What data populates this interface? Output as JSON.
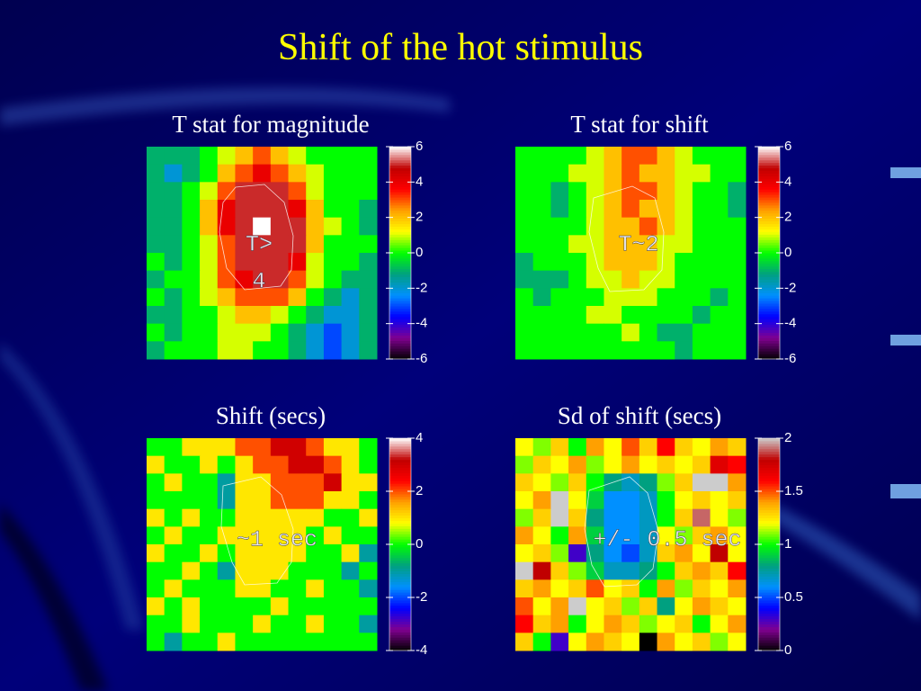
{
  "slide_title": "Shift of the hot stimulus",
  "chart_data": [
    {
      "type": "heatmap",
      "title": "T stat for magnitude",
      "zlim": [
        -6,
        6
      ],
      "zticks": [
        -6,
        -4,
        -2,
        0,
        2,
        4,
        6
      ],
      "colormap": [
        "#000000",
        "#800090",
        "#0000ff",
        "#0090ff",
        "#00a080",
        "#00ff00",
        "#ffff00",
        "#ffa000",
        "#ff0000",
        "#c00000",
        "#ffffff"
      ],
      "annotation": [
        "T>",
        "4"
      ],
      "values": [
        [
          -1,
          -1,
          -1,
          0,
          1,
          2,
          3,
          2,
          1,
          0,
          0,
          0,
          0
        ],
        [
          -1,
          -2,
          -1,
          0,
          2,
          3,
          4,
          3,
          2,
          1,
          0,
          0,
          0
        ],
        [
          -1,
          -1,
          0,
          1,
          3,
          5,
          5,
          5,
          3,
          1,
          0,
          0,
          0
        ],
        [
          -1,
          -1,
          0,
          2,
          4,
          5,
          5,
          5,
          4,
          2,
          0,
          0,
          -1
        ],
        [
          -1,
          -1,
          0,
          2,
          4,
          5,
          6,
          5,
          5,
          2,
          1,
          0,
          -1
        ],
        [
          -1,
          -1,
          0,
          1,
          3,
          5,
          5,
          5,
          5,
          2,
          0,
          0,
          0
        ],
        [
          0,
          -1,
          0,
          1,
          3,
          5,
          5,
          5,
          4,
          1,
          0,
          0,
          -1
        ],
        [
          -1,
          0,
          0,
          1,
          3,
          4,
          5,
          5,
          3,
          1,
          0,
          -1,
          -1
        ],
        [
          0,
          -1,
          0,
          1,
          2,
          3,
          3,
          3,
          2,
          0,
          -1,
          -2,
          -1
        ],
        [
          -1,
          -1,
          0,
          0,
          1,
          2,
          2,
          1,
          0,
          -1,
          -2,
          -2,
          -1
        ],
        [
          0,
          -1,
          0,
          0,
          1,
          1,
          1,
          0,
          -1,
          -2,
          -3,
          -2,
          -1
        ],
        [
          -1,
          0,
          0,
          0,
          1,
          1,
          0,
          0,
          -1,
          -2,
          -3,
          -2,
          -1
        ]
      ]
    },
    {
      "type": "heatmap",
      "title": "T stat for shift",
      "zlim": [
        -6,
        6
      ],
      "zticks": [
        -6,
        -4,
        -2,
        0,
        2,
        4,
        6
      ],
      "colormap": [
        "#000000",
        "#800090",
        "#0000ff",
        "#0090ff",
        "#00a080",
        "#00ff00",
        "#ffff00",
        "#ffa000",
        "#ff0000",
        "#c00000",
        "#ffffff"
      ],
      "annotation": [
        "T~2"
      ],
      "values": [
        [
          0,
          0,
          0,
          0,
          1,
          2,
          3,
          3,
          2,
          1,
          0,
          0,
          0
        ],
        [
          0,
          0,
          0,
          1,
          1,
          2,
          3,
          2,
          2,
          1,
          1,
          0,
          0
        ],
        [
          0,
          0,
          -1,
          0,
          1,
          2,
          3,
          3,
          2,
          1,
          0,
          0,
          -1
        ],
        [
          0,
          0,
          -1,
          0,
          1,
          2,
          3,
          2,
          2,
          1,
          0,
          0,
          -1
        ],
        [
          0,
          0,
          0,
          0,
          1,
          2,
          2,
          3,
          2,
          1,
          0,
          0,
          0
        ],
        [
          0,
          0,
          0,
          1,
          1,
          2,
          2,
          2,
          1,
          1,
          0,
          0,
          0
        ],
        [
          -1,
          0,
          0,
          0,
          1,
          2,
          2,
          2,
          1,
          0,
          0,
          0,
          0
        ],
        [
          -1,
          -1,
          -1,
          0,
          1,
          1,
          2,
          1,
          1,
          0,
          0,
          0,
          0
        ],
        [
          0,
          -1,
          0,
          0,
          0,
          1,
          1,
          1,
          0,
          0,
          0,
          -1,
          0
        ],
        [
          0,
          0,
          0,
          0,
          1,
          1,
          0,
          0,
          0,
          0,
          -1,
          0,
          0
        ],
        [
          0,
          0,
          0,
          0,
          0,
          0,
          1,
          0,
          -1,
          -1,
          0,
          0,
          0
        ],
        [
          0,
          0,
          0,
          0,
          0,
          0,
          0,
          0,
          0,
          -1,
          0,
          0,
          0
        ]
      ]
    },
    {
      "type": "heatmap",
      "title": "Shift (secs)",
      "zlim": [
        -4,
        4
      ],
      "zticks": [
        -4,
        -2,
        0,
        2,
        4
      ],
      "colormap": [
        "#000000",
        "#800090",
        "#0000ff",
        "#0090ff",
        "#00a080",
        "#00ff00",
        "#ffff00",
        "#ffa000",
        "#ff0000",
        "#c00000",
        "#ffffff"
      ],
      "annotation": [
        "~1 sec"
      ],
      "values": [
        [
          0,
          0,
          1,
          1,
          1,
          2,
          2,
          3,
          3,
          2,
          1,
          1,
          0
        ],
        [
          1,
          0,
          0,
          1,
          0,
          1,
          2,
          2,
          3,
          3,
          2,
          1,
          0
        ],
        [
          0,
          1,
          0,
          0,
          -1,
          1,
          1,
          2,
          2,
          2,
          3,
          1,
          1
        ],
        [
          0,
          0,
          0,
          0,
          -1,
          1,
          1,
          2,
          2,
          2,
          1,
          1,
          0
        ],
        [
          1,
          0,
          1,
          0,
          0,
          1,
          1,
          1,
          1,
          1,
          0,
          0,
          1
        ],
        [
          0,
          1,
          0,
          0,
          1,
          1,
          1,
          1,
          1,
          0,
          1,
          0,
          0
        ],
        [
          1,
          0,
          0,
          1,
          0,
          1,
          1,
          1,
          1,
          0,
          0,
          1,
          -1
        ],
        [
          0,
          0,
          1,
          0,
          -1,
          1,
          1,
          1,
          0,
          0,
          0,
          -1,
          0
        ],
        [
          0,
          1,
          0,
          0,
          0,
          1,
          1,
          0,
          0,
          1,
          0,
          0,
          -1
        ],
        [
          1,
          0,
          1,
          0,
          0,
          0,
          0,
          1,
          0,
          0,
          0,
          0,
          0
        ],
        [
          0,
          0,
          1,
          0,
          0,
          0,
          1,
          0,
          0,
          1,
          0,
          0,
          -1
        ],
        [
          0,
          -1,
          0,
          0,
          1,
          0,
          0,
          0,
          0,
          0,
          0,
          0,
          0
        ]
      ]
    },
    {
      "type": "heatmap",
      "title": "Sd of shift (secs)",
      "zlim": [
        0,
        2
      ],
      "zticks": [
        0,
        0.5,
        1,
        1.5,
        2
      ],
      "colormap": [
        "#000000",
        "#800090",
        "#0000ff",
        "#0090ff",
        "#00a080",
        "#00ff00",
        "#ffff00",
        "#ffa000",
        "#ff0000",
        "#c00000",
        "#cccccc"
      ],
      "annotation": [
        "+/- 0.5 sec"
      ],
      "values": [
        [
          1.2,
          1.1,
          1.3,
          1.0,
          1.4,
          1.2,
          1.5,
          1.3,
          1.6,
          1.3,
          1.2,
          1.4,
          1.3
        ],
        [
          1.1,
          1.3,
          1.2,
          1.4,
          1.1,
          1.2,
          1.4,
          1.2,
          1.3,
          1.2,
          1.3,
          1.7,
          1.6
        ],
        [
          1.3,
          1.2,
          1.1,
          1.3,
          1.0,
          0.8,
          0.7,
          0.8,
          1.1,
          1.3,
          2.0,
          2.0,
          1.4
        ],
        [
          1.2,
          1.4,
          2.0,
          1.2,
          0.9,
          0.6,
          0.6,
          0.7,
          1.0,
          1.2,
          1.3,
          1.2,
          1.3
        ],
        [
          1.1,
          1.3,
          2.0,
          1.3,
          0.8,
          0.6,
          0.6,
          0.7,
          1.0,
          1.3,
          1.9,
          1.2,
          1.1
        ],
        [
          1.4,
          1.2,
          1.0,
          1.4,
          0.9,
          0.6,
          0.6,
          0.7,
          1.2,
          1.1,
          1.3,
          1.4,
          1.2
        ],
        [
          1.2,
          1.3,
          1.1,
          0.3,
          0.8,
          0.6,
          0.5,
          0.7,
          1.3,
          1.4,
          1.2,
          1.8,
          1.2
        ],
        [
          2.0,
          1.8,
          1.3,
          1.1,
          0.9,
          0.7,
          0.7,
          0.8,
          1.0,
          1.3,
          1.4,
          1.3,
          1.6
        ],
        [
          1.3,
          1.4,
          1.2,
          1.3,
          1.5,
          1.2,
          1.3,
          1.0,
          1.4,
          1.1,
          1.3,
          1.2,
          1.4
        ],
        [
          1.5,
          1.2,
          1.4,
          2.0,
          1.2,
          1.3,
          1.1,
          1.3,
          0.8,
          1.2,
          1.4,
          1.3,
          1.2
        ],
        [
          1.6,
          1.3,
          1.4,
          1.0,
          1.2,
          1.4,
          1.3,
          1.1,
          1.2,
          1.3,
          1.0,
          1.2,
          1.4
        ],
        [
          1.3,
          1.0,
          0.3,
          1.2,
          1.4,
          1.3,
          1.2,
          0.0,
          1.4,
          1.2,
          1.3,
          1.1,
          1.2
        ]
      ]
    }
  ]
}
